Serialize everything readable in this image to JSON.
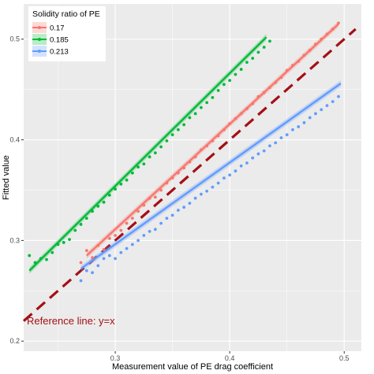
{
  "chart_data": {
    "type": "scatter",
    "xlabel": "Measurement value of PE drag coefficient",
    "ylabel": "Fitted value",
    "xlim": [
      0.22,
      0.515
    ],
    "ylim": [
      0.19,
      0.535
    ],
    "x_ticks": [
      0.3,
      0.4,
      0.5
    ],
    "x_tick_labels": [
      "0.3",
      "0.4",
      "0.5"
    ],
    "y_ticks": [
      0.2,
      0.3,
      0.4,
      0.5
    ],
    "y_tick_labels": [
      "0.2",
      "0.3",
      "0.4",
      "0.5"
    ],
    "grid": true,
    "background": "#ebebeb",
    "legend": {
      "title": "Solidity ratio of PE",
      "position": "top-left",
      "entries": [
        "0.17",
        "0.185",
        "0.213"
      ]
    },
    "series": [
      {
        "name": "0.17",
        "color": "#f8766d",
        "x_range": [
          0.27,
          0.495
        ],
        "fit": {
          "x0": 0.275,
          "y0": 0.285,
          "x1": 0.495,
          "y1": 0.515
        },
        "points": [
          [
            0.27,
            0.278
          ],
          [
            0.275,
            0.29
          ],
          [
            0.28,
            0.283
          ],
          [
            0.285,
            0.295
          ],
          [
            0.29,
            0.291
          ],
          [
            0.295,
            0.302
          ],
          [
            0.3,
            0.305
          ],
          [
            0.305,
            0.31
          ],
          [
            0.31,
            0.317
          ],
          [
            0.315,
            0.322
          ],
          [
            0.32,
            0.329
          ],
          [
            0.325,
            0.335
          ],
          [
            0.33,
            0.342
          ],
          [
            0.335,
            0.343
          ],
          [
            0.34,
            0.35
          ],
          [
            0.345,
            0.357
          ],
          [
            0.35,
            0.362
          ],
          [
            0.355,
            0.367
          ],
          [
            0.36,
            0.372
          ],
          [
            0.365,
            0.378
          ],
          [
            0.37,
            0.383
          ],
          [
            0.375,
            0.39
          ],
          [
            0.38,
            0.394
          ],
          [
            0.385,
            0.399
          ],
          [
            0.39,
            0.404
          ],
          [
            0.395,
            0.41
          ],
          [
            0.4,
            0.416
          ],
          [
            0.405,
            0.421
          ],
          [
            0.41,
            0.426
          ],
          [
            0.415,
            0.431
          ],
          [
            0.42,
            0.436
          ],
          [
            0.425,
            0.443
          ],
          [
            0.43,
            0.447
          ],
          [
            0.435,
            0.452
          ],
          [
            0.44,
            0.457
          ],
          [
            0.445,
            0.462
          ],
          [
            0.45,
            0.469
          ],
          [
            0.455,
            0.474
          ],
          [
            0.46,
            0.478
          ],
          [
            0.465,
            0.484
          ],
          [
            0.47,
            0.489
          ],
          [
            0.475,
            0.495
          ],
          [
            0.48,
            0.5
          ],
          [
            0.485,
            0.505
          ],
          [
            0.49,
            0.51
          ],
          [
            0.495,
            0.516
          ]
        ]
      },
      {
        "name": "0.185",
        "color": "#00ba38",
        "x_range": [
          0.225,
          0.435
        ],
        "fit": {
          "x0": 0.225,
          "y0": 0.27,
          "x1": 0.432,
          "y1": 0.502
        },
        "points": [
          [
            0.225,
            0.285
          ],
          [
            0.23,
            0.278
          ],
          [
            0.235,
            0.282
          ],
          [
            0.24,
            0.281
          ],
          [
            0.245,
            0.288
          ],
          [
            0.25,
            0.296
          ],
          [
            0.255,
            0.298
          ],
          [
            0.26,
            0.301
          ],
          [
            0.265,
            0.31
          ],
          [
            0.27,
            0.316
          ],
          [
            0.275,
            0.322
          ],
          [
            0.28,
            0.329
          ],
          [
            0.285,
            0.334
          ],
          [
            0.29,
            0.338
          ],
          [
            0.295,
            0.345
          ],
          [
            0.3,
            0.351
          ],
          [
            0.305,
            0.356
          ],
          [
            0.31,
            0.36
          ],
          [
            0.315,
            0.367
          ],
          [
            0.32,
            0.373
          ],
          [
            0.325,
            0.376
          ],
          [
            0.33,
            0.383
          ],
          [
            0.335,
            0.387
          ],
          [
            0.34,
            0.393
          ],
          [
            0.345,
            0.399
          ],
          [
            0.35,
            0.405
          ],
          [
            0.355,
            0.41
          ],
          [
            0.36,
            0.415
          ],
          [
            0.365,
            0.422
          ],
          [
            0.37,
            0.426
          ],
          [
            0.375,
            0.432
          ],
          [
            0.38,
            0.437
          ],
          [
            0.385,
            0.442
          ],
          [
            0.39,
            0.449
          ],
          [
            0.395,
            0.455
          ],
          [
            0.4,
            0.459
          ],
          [
            0.405,
            0.465
          ],
          [
            0.41,
            0.47
          ],
          [
            0.415,
            0.477
          ],
          [
            0.42,
            0.481
          ],
          [
            0.425,
            0.487
          ],
          [
            0.43,
            0.492
          ],
          [
            0.435,
            0.498
          ]
        ]
      },
      {
        "name": "0.213",
        "color": "#619cff",
        "x_range": [
          0.27,
          0.495
        ],
        "fit": {
          "x0": 0.27,
          "y0": 0.272,
          "x1": 0.497,
          "y1": 0.456
        },
        "points": [
          [
            0.27,
            0.26
          ],
          [
            0.275,
            0.27
          ],
          [
            0.28,
            0.268
          ],
          [
            0.285,
            0.275
          ],
          [
            0.29,
            0.282
          ],
          [
            0.295,
            0.285
          ],
          [
            0.3,
            0.282
          ],
          [
            0.305,
            0.288
          ],
          [
            0.31,
            0.292
          ],
          [
            0.315,
            0.296
          ],
          [
            0.32,
            0.3
          ],
          [
            0.325,
            0.305
          ],
          [
            0.33,
            0.309
          ],
          [
            0.335,
            0.311
          ],
          [
            0.34,
            0.317
          ],
          [
            0.345,
            0.322
          ],
          [
            0.35,
            0.325
          ],
          [
            0.355,
            0.33
          ],
          [
            0.36,
            0.333
          ],
          [
            0.365,
            0.337
          ],
          [
            0.37,
            0.342
          ],
          [
            0.375,
            0.346
          ],
          [
            0.38,
            0.349
          ],
          [
            0.385,
            0.353
          ],
          [
            0.39,
            0.357
          ],
          [
            0.395,
            0.362
          ],
          [
            0.4,
            0.365
          ],
          [
            0.405,
            0.369
          ],
          [
            0.41,
            0.374
          ],
          [
            0.415,
            0.377
          ],
          [
            0.42,
            0.382
          ],
          [
            0.425,
            0.386
          ],
          [
            0.43,
            0.389
          ],
          [
            0.435,
            0.394
          ],
          [
            0.44,
            0.397
          ],
          [
            0.445,
            0.402
          ],
          [
            0.45,
            0.405
          ],
          [
            0.455,
            0.41
          ],
          [
            0.46,
            0.413
          ],
          [
            0.465,
            0.417
          ],
          [
            0.47,
            0.422
          ],
          [
            0.475,
            0.426
          ],
          [
            0.48,
            0.43
          ],
          [
            0.485,
            0.434
          ],
          [
            0.49,
            0.438
          ],
          [
            0.495,
            0.443
          ]
        ]
      }
    ],
    "reference_line": {
      "label": "Reference line: y=x",
      "color": "#a50f15",
      "style": "dashed",
      "x0": 0.22,
      "y0": 0.22,
      "x1": 0.51,
      "y1": 0.51
    }
  }
}
